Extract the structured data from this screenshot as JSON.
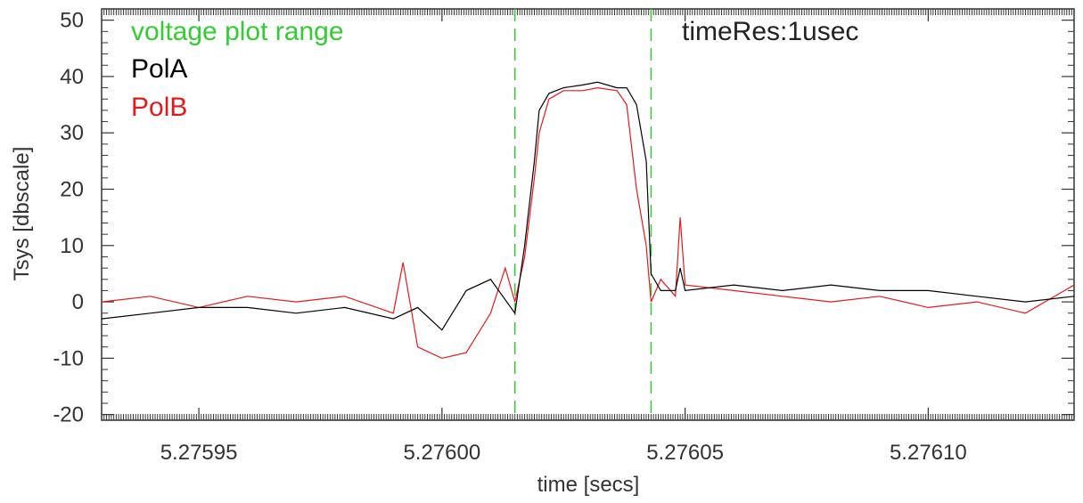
{
  "chart_data": {
    "type": "line",
    "title": "",
    "xlabel": "time [secs]",
    "ylabel": "Tsys [dbscale]",
    "xlim": [
      5.27593,
      5.27613
    ],
    "ylim": [
      -21,
      52
    ],
    "x_ticks": [
      5.27595,
      5.276,
      5.27605,
      5.2761
    ],
    "x_tick_labels": [
      "5.27595",
      "5.27600",
      "5.27605",
      "5.27610"
    ],
    "y_ticks": [
      -20,
      -10,
      0,
      10,
      20,
      30,
      40,
      50
    ],
    "y_tick_labels": [
      "-20",
      "-10",
      "0",
      "10",
      "20",
      "30",
      "40",
      "50"
    ],
    "x_minor_step": 5e-07,
    "y_minor_step": 2,
    "grid": false,
    "legend_placement": "top-left",
    "annotations": {
      "voltage_label": "voltage plot range",
      "time_res_label": "timeRes:1usec"
    },
    "voltage_range": [
      5.276015,
      5.276043
    ],
    "colors": {
      "polA": "#000000",
      "polB": "#e31a1c",
      "voltage": "#33cc33",
      "axis": "#333333"
    },
    "series": [
      {
        "name": "PolA",
        "x": [
          5.27593,
          5.27594,
          5.27595,
          5.27596,
          5.27597,
          5.27598,
          5.27599,
          5.275995,
          5.276,
          5.276005,
          5.27601,
          5.276015,
          5.276017,
          5.276019,
          5.27602,
          5.276022,
          5.276025,
          5.276029,
          5.276032,
          5.276036,
          5.276038,
          5.27604,
          5.276042,
          5.276043,
          5.276045,
          5.276048,
          5.276049,
          5.27605,
          5.27606,
          5.27607,
          5.27608,
          5.27609,
          5.2761,
          5.27611,
          5.27612,
          5.27613
        ],
        "y": [
          -3,
          -2,
          -1,
          -1,
          -2,
          -1,
          -3,
          -1,
          -5,
          2,
          4,
          -2,
          10,
          25,
          34,
          37,
          38,
          38.5,
          39,
          38,
          38,
          35,
          25,
          5,
          2,
          2,
          6,
          2,
          3,
          2,
          3,
          2,
          2,
          1,
          0,
          1
        ]
      },
      {
        "name": "PolB",
        "x": [
          5.27593,
          5.27594,
          5.27595,
          5.27596,
          5.27597,
          5.27598,
          5.27599,
          5.275992,
          5.275995,
          5.276,
          5.276005,
          5.27601,
          5.276013,
          5.276015,
          5.276017,
          5.276019,
          5.27602,
          5.276022,
          5.276025,
          5.276029,
          5.276032,
          5.276036,
          5.276038,
          5.27604,
          5.276042,
          5.276043,
          5.276045,
          5.276048,
          5.276049,
          5.27605,
          5.27606,
          5.27607,
          5.27608,
          5.27609,
          5.2761,
          5.27611,
          5.27612,
          5.27613
        ],
        "y": [
          0,
          1,
          -1,
          1,
          0,
          1,
          -2,
          7,
          -8,
          -10,
          -9,
          -2,
          6,
          0,
          8,
          22,
          30,
          36,
          37.5,
          37.5,
          38,
          37.5,
          35,
          20,
          10,
          0,
          4,
          1,
          15,
          3,
          2,
          1,
          0,
          1,
          -1,
          0,
          -2,
          3
        ]
      }
    ]
  }
}
